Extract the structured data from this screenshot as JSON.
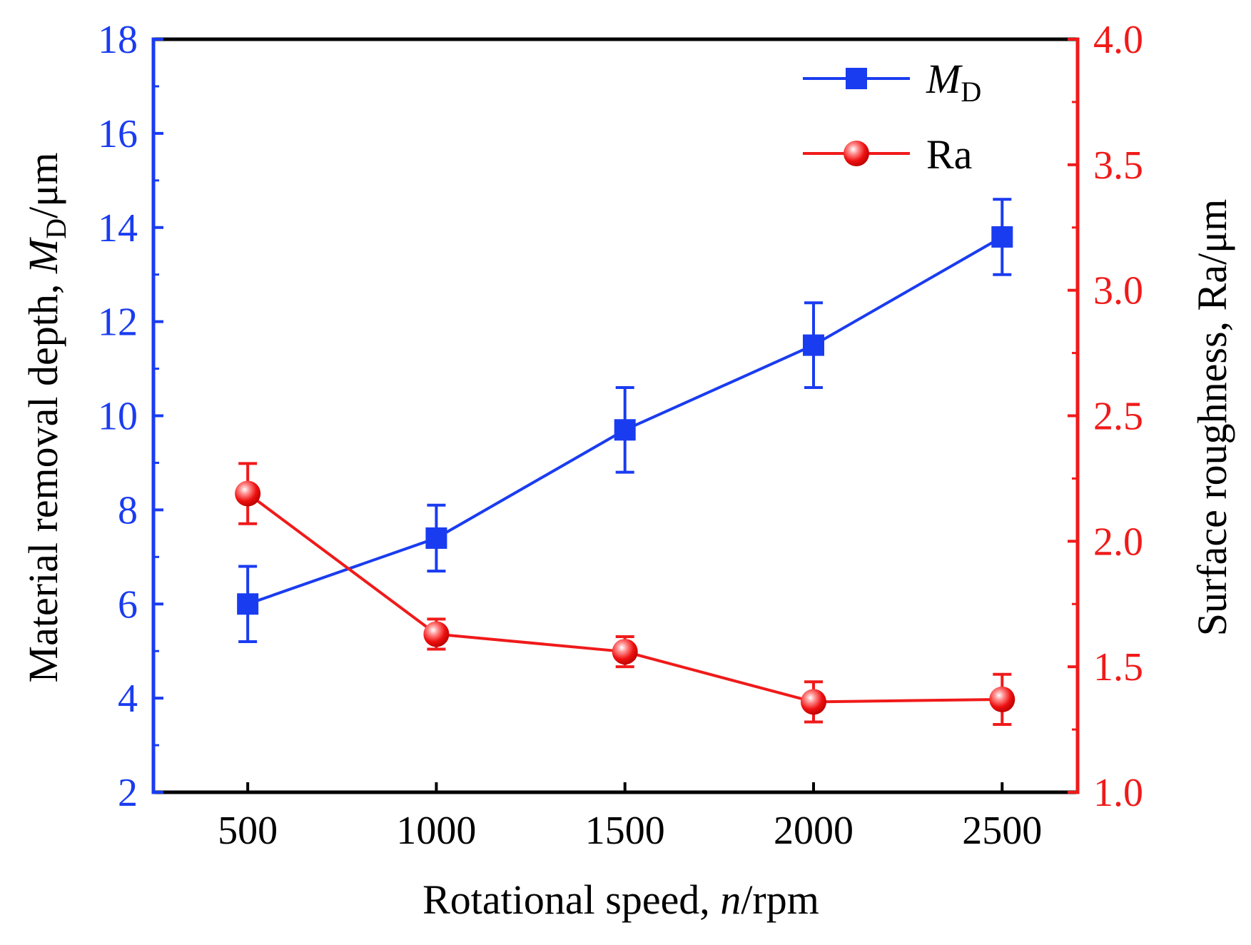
{
  "chart_data": {
    "type": "line",
    "title": "",
    "xlabel": {
      "prefix": "Rotational speed, ",
      "italic": "n",
      "suffix": "/rpm"
    },
    "ylabel_left": {
      "prefix": "Material removal depth, ",
      "italic": "M",
      "sub": "D",
      "suffix": "/μm"
    },
    "ylabel_right": "Surface roughness, Ra/μm",
    "x": [
      500,
      1000,
      1500,
      2000,
      2500
    ],
    "xlim": [
      250,
      2700
    ],
    "xticks": [
      "500",
      "1000",
      "1500",
      "2000",
      "2500"
    ],
    "ylim_left": [
      2,
      18
    ],
    "yticks_left": [
      "2",
      "4",
      "6",
      "8",
      "10",
      "12",
      "14",
      "16",
      "18"
    ],
    "ylim_right": [
      1.0,
      4.0
    ],
    "yticks_right": [
      "1.0",
      "1.5",
      "2.0",
      "2.5",
      "3.0",
      "3.5",
      "4.0"
    ],
    "series": [
      {
        "name": "MD",
        "legend_italic": "M",
        "legend_sub": "D",
        "axis": "left",
        "color": "#1a3cf0",
        "marker": "square",
        "values": [
          6.0,
          7.4,
          9.7,
          11.5,
          13.8
        ],
        "errors": [
          0.8,
          0.7,
          0.9,
          0.9,
          0.8
        ]
      },
      {
        "name": "Ra",
        "legend_label": "Ra",
        "axis": "right",
        "color": "#f01a1a",
        "marker": "circle",
        "values": [
          2.19,
          1.63,
          1.56,
          1.36,
          1.37
        ],
        "errors": [
          0.12,
          0.06,
          0.06,
          0.08,
          0.1
        ]
      }
    ],
    "legend_position": "top-right"
  }
}
